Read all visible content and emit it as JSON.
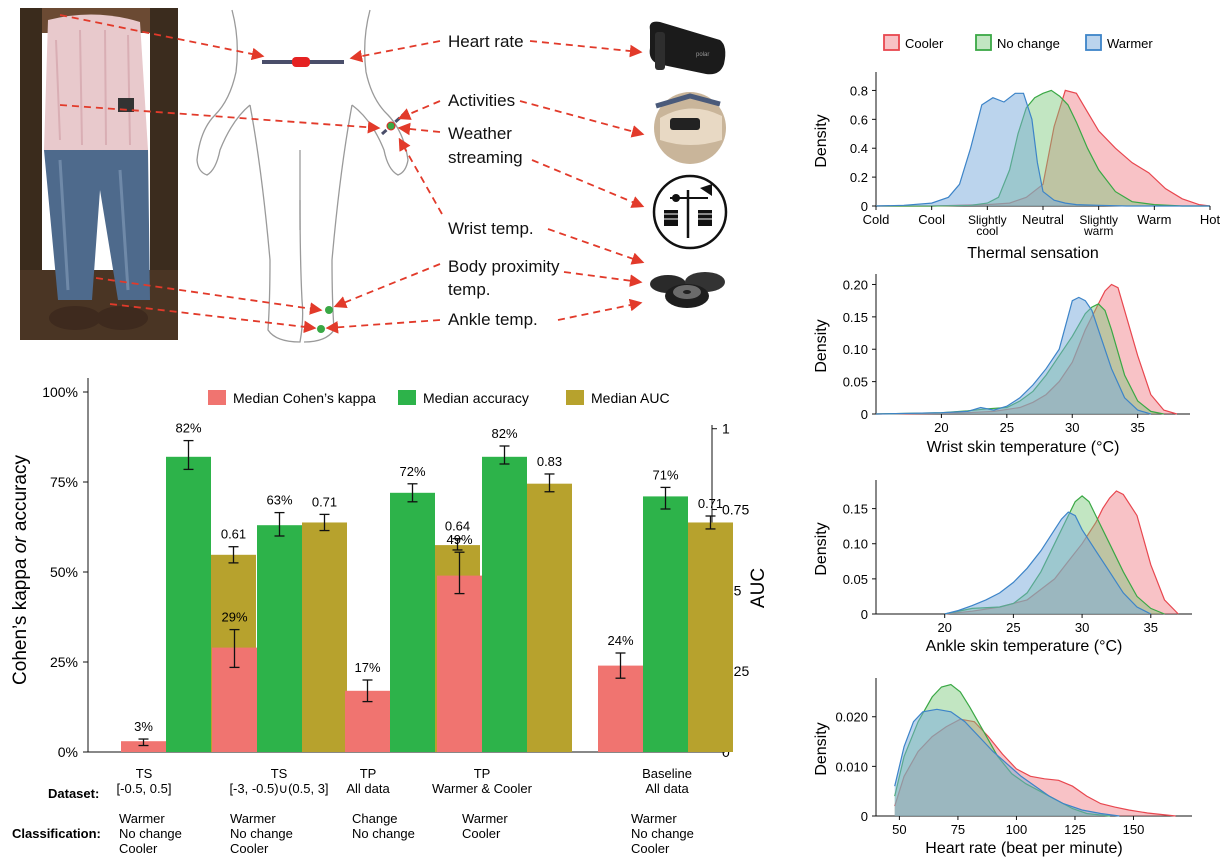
{
  "sensor_labels": {
    "heart_rate": "Heart rate",
    "activities": "Activities",
    "weather_line1": "Weather",
    "weather_line2": "streaming",
    "wrist": "Wrist temp.",
    "body_line1": "Body proximity",
    "body_line2": "temp.",
    "ankle": "Ankle temp."
  },
  "icon_names": [
    "person-photo",
    "body-outline-icon",
    "chest-strap-icon",
    "wrist-activity-photo",
    "weather-station-icon",
    "temperature-button-sensor-icon"
  ],
  "colors": {
    "cooler": "#e8474f",
    "nochange": "#3aa845",
    "warmer": "#3d84c8",
    "kappa": "#f07470",
    "accuracy": "#2db34a",
    "auc": "#b7a22d",
    "arrow": "#e23a2a"
  },
  "chart_data": [
    {
      "type": "bar",
      "legend": [
        "Median Cohen’s kappa",
        "Median accuracy",
        "Median AUC"
      ],
      "legend_position": "top",
      "ylabel_parts": [
        "Cohen’s kappa ",
        "or",
        " accuracy"
      ],
      "ylabel_right": "AUC",
      "y_ticks": [
        "0%",
        "25%",
        "50%",
        "75%",
        "100%"
      ],
      "y_right_ticks": [
        "0",
        "0.25",
        "0.5",
        "0.75",
        "1"
      ],
      "ylim": [
        0,
        100
      ],
      "y_right_lim": [
        0,
        1
      ],
      "row_labels": {
        "dataset": "Dataset:",
        "classification": "Classification:"
      },
      "groups": [
        {
          "dataset": [
            "TS",
            "[-0.5, 0.5]"
          ],
          "classification": [
            "Warmer",
            "No change",
            "Cooler"
          ],
          "kappa": 3,
          "kappa_label": "3%",
          "kappa_err": [
            1.8,
            3.6
          ],
          "accuracy": 82,
          "accuracy_label": "82%",
          "accuracy_err": [
            78.5,
            86.5
          ],
          "auc": 0.61,
          "auc_label": "0.61",
          "auc_err": [
            0.585,
            0.635
          ]
        },
        {
          "dataset": [
            "TS",
            "[-3, -0.5)∪(0.5, 3]"
          ],
          "classification": [
            "Warmer",
            "No change",
            "Cooler"
          ],
          "kappa": 29,
          "kappa_label": "29%",
          "kappa_err": [
            23.5,
            34
          ],
          "accuracy": 63,
          "accuracy_label": "63%",
          "accuracy_err": [
            60,
            66.5
          ],
          "auc": 0.71,
          "auc_label": "0.71",
          "auc_err": [
            0.685,
            0.735
          ]
        },
        {
          "dataset": [
            "TP",
            "All data"
          ],
          "classification": [
            "Change",
            "No change"
          ],
          "kappa": 17,
          "kappa_label": "17%",
          "kappa_err": [
            14,
            20
          ],
          "accuracy": 72,
          "accuracy_label": "72%",
          "accuracy_err": [
            69.5,
            74.5
          ],
          "auc": 0.64,
          "auc_label": "0.64",
          "auc_err": [
            0.625,
            0.66
          ]
        },
        {
          "dataset": [
            "TP",
            "Warmer & Cooler"
          ],
          "classification": [
            "Warmer",
            "Cooler"
          ],
          "kappa": 49,
          "kappa_label": "49%",
          "kappa_err": [
            44,
            55.5
          ],
          "accuracy": 82,
          "accuracy_label": "82%",
          "accuracy_err": [
            80,
            85
          ],
          "auc": 0.83,
          "auc_label": "0.83",
          "auc_err": [
            0.805,
            0.86
          ]
        },
        {
          "dataset": [
            "Baseline",
            "All data"
          ],
          "classification": [
            "Warmer",
            "No change",
            "Cooler"
          ],
          "kappa": 24,
          "kappa_label": "24%",
          "kappa_err": [
            20.5,
            27.5
          ],
          "accuracy": 71,
          "accuracy_label": "71%",
          "accuracy_err": [
            67.5,
            73.5
          ],
          "auc": 0.71,
          "auc_label": "0.71",
          "auc_err": [
            0.69,
            0.73
          ]
        }
      ]
    },
    {
      "type": "area",
      "legend": [
        "Cooler",
        "No change",
        "Warmer"
      ],
      "legend_position": "top",
      "xlabel": "Thermal sensation",
      "ylabel": "Density",
      "x_ticks": [
        "Cold",
        "Cool",
        "Slightly cool",
        "Neutral",
        "Slightly warm",
        "Warm",
        "Hot"
      ],
      "xlim": [
        -3,
        3
      ],
      "y_ticks": [
        "0",
        "0.2",
        "0.4",
        "0.6",
        "0.8"
      ],
      "ylim": [
        0,
        0.9
      ],
      "series": [
        {
          "name": "Cooler",
          "x": [
            -3,
            -2,
            -1,
            -0.6,
            -0.3,
            0,
            0.2,
            0.4,
            0.6,
            0.8,
            1,
            1.3,
            1.6,
            1.9,
            2.2,
            2.5,
            2.8,
            3
          ],
          "y": [
            0,
            0,
            0.01,
            0.02,
            0.06,
            0.15,
            0.55,
            0.8,
            0.78,
            0.65,
            0.52,
            0.4,
            0.3,
            0.23,
            0.12,
            0.05,
            0.01,
            0
          ]
        },
        {
          "name": "No change",
          "x": [
            -3,
            -2,
            -1.3,
            -1,
            -0.8,
            -0.6,
            -0.45,
            -0.3,
            -0.15,
            0,
            0.15,
            0.3,
            0.45,
            0.6,
            0.8,
            1,
            1.3,
            1.6,
            2,
            2.5,
            3
          ],
          "y": [
            0,
            0,
            0.005,
            0.02,
            0.06,
            0.25,
            0.5,
            0.68,
            0.75,
            0.78,
            0.8,
            0.76,
            0.7,
            0.58,
            0.4,
            0.25,
            0.1,
            0.03,
            0.01,
            0,
            0
          ]
        },
        {
          "name": "Warmer",
          "x": [
            -3,
            -2.5,
            -2,
            -1.7,
            -1.5,
            -1.3,
            -1.1,
            -0.9,
            -0.7,
            -0.5,
            -0.35,
            -0.2,
            -0.1,
            0,
            0.2,
            0.4,
            0.6,
            1,
            1.5,
            3
          ],
          "y": [
            0,
            0.005,
            0.02,
            0.06,
            0.15,
            0.4,
            0.7,
            0.75,
            0.72,
            0.78,
            0.78,
            0.6,
            0.3,
            0.1,
            0.04,
            0.02,
            0.01,
            0.005,
            0,
            0
          ]
        }
      ]
    },
    {
      "type": "area",
      "xlabel": "Wrist skin temperature (°C)",
      "ylabel": "Density",
      "x_ticks": [
        "20",
        "25",
        "30",
        "35"
      ],
      "xlim": [
        15,
        39
      ],
      "y_ticks": [
        "0",
        "0.05",
        "0.10",
        "0.15",
        "0.20"
      ],
      "ylim": [
        0,
        0.21
      ],
      "series": [
        {
          "name": "Cooler",
          "x": [
            15,
            20,
            22,
            24,
            26,
            27,
            28,
            29,
            30,
            31,
            32,
            32.5,
            33,
            33.5,
            34,
            35,
            36,
            37,
            38
          ],
          "y": [
            0,
            0.001,
            0.002,
            0.004,
            0.01,
            0.018,
            0.03,
            0.05,
            0.08,
            0.13,
            0.17,
            0.19,
            0.2,
            0.195,
            0.16,
            0.09,
            0.03,
            0.006,
            0
          ]
        },
        {
          "name": "No change",
          "x": [
            15,
            20,
            22,
            23.5,
            25,
            26,
            27,
            28,
            29,
            30,
            31,
            31.5,
            32,
            32.5,
            33,
            34,
            35,
            36,
            37
          ],
          "y": [
            0,
            0.002,
            0.005,
            0.008,
            0.01,
            0.02,
            0.035,
            0.06,
            0.09,
            0.12,
            0.155,
            0.165,
            0.17,
            0.16,
            0.13,
            0.06,
            0.02,
            0.004,
            0
          ]
        },
        {
          "name": "Warmer",
          "x": [
            15,
            20,
            22,
            23,
            24,
            25,
            26,
            27,
            28,
            29,
            30,
            30.5,
            31,
            31.5,
            32,
            33,
            34,
            35,
            36
          ],
          "y": [
            0,
            0.002,
            0.004,
            0.01,
            0.006,
            0.012,
            0.025,
            0.045,
            0.07,
            0.1,
            0.175,
            0.18,
            0.175,
            0.16,
            0.13,
            0.07,
            0.025,
            0.006,
            0
          ]
        }
      ]
    },
    {
      "type": "area",
      "xlabel": "Ankle skin temperature (°C)",
      "ylabel": "Density",
      "x_ticks": [
        "20",
        "25",
        "30",
        "35"
      ],
      "xlim": [
        15,
        38
      ],
      "y_ticks": [
        "0",
        "0.05",
        "0.10",
        "0.15"
      ],
      "ylim": [
        0,
        0.185
      ],
      "series": [
        {
          "name": "Cooler",
          "x": [
            20,
            22,
            24,
            26,
            27,
            28,
            29,
            30,
            31,
            31.5,
            32,
            32.5,
            33,
            34,
            35,
            36,
            37
          ],
          "y": [
            0,
            0.004,
            0.01,
            0.02,
            0.035,
            0.05,
            0.075,
            0.1,
            0.13,
            0.15,
            0.165,
            0.175,
            0.17,
            0.14,
            0.07,
            0.02,
            0
          ]
        },
        {
          "name": "No change",
          "x": [
            20,
            22,
            24,
            25,
            26,
            27,
            28,
            29,
            29.5,
            30,
            30.5,
            31,
            32,
            33,
            34,
            35,
            36
          ],
          "y": [
            0,
            0.008,
            0.01,
            0.015,
            0.03,
            0.06,
            0.1,
            0.14,
            0.16,
            0.168,
            0.16,
            0.14,
            0.1,
            0.06,
            0.025,
            0.008,
            0
          ]
        },
        {
          "name": "Warmer",
          "x": [
            20,
            21,
            22,
            23,
            24,
            25,
            26,
            27,
            28,
            28.5,
            29,
            29.5,
            30,
            31,
            32,
            33,
            34,
            35
          ],
          "y": [
            0,
            0.005,
            0.012,
            0.02,
            0.03,
            0.045,
            0.065,
            0.09,
            0.12,
            0.135,
            0.145,
            0.14,
            0.12,
            0.09,
            0.06,
            0.03,
            0.01,
            0
          ]
        }
      ]
    },
    {
      "type": "area",
      "xlabel": "Heart rate (beat per minute)",
      "ylabel": "Density",
      "x_ticks": [
        "50",
        "75",
        "100",
        "125",
        "150"
      ],
      "xlim": [
        40,
        175
      ],
      "y_ticks": [
        "0",
        "0.010",
        "0.020"
      ],
      "ylim": [
        0,
        0.027
      ],
      "series": [
        {
          "name": "Cooler",
          "x": [
            48,
            52,
            58,
            64,
            70,
            76,
            82,
            88,
            94,
            100,
            106,
            112,
            118,
            124,
            130,
            136,
            142,
            148,
            156,
            164,
            168
          ],
          "y": [
            0.002,
            0.008,
            0.013,
            0.016,
            0.018,
            0.0195,
            0.019,
            0.016,
            0.0125,
            0.0095,
            0.008,
            0.0075,
            0.0072,
            0.006,
            0.004,
            0.0025,
            0.0018,
            0.0012,
            0.0006,
            0.0002,
            0
          ]
        },
        {
          "name": "No change",
          "x": [
            48,
            52,
            58,
            64,
            68,
            72,
            76,
            80,
            86,
            92,
            98,
            104,
            110,
            118,
            124,
            130,
            140
          ],
          "y": [
            0.004,
            0.012,
            0.019,
            0.024,
            0.026,
            0.0265,
            0.025,
            0.022,
            0.017,
            0.012,
            0.0085,
            0.0065,
            0.005,
            0.003,
            0.0015,
            0.0005,
            0
          ]
        },
        {
          "name": "Warmer",
          "x": [
            48,
            52,
            56,
            60,
            66,
            72,
            78,
            84,
            90,
            96,
            102,
            108,
            114,
            120,
            128,
            136,
            144
          ],
          "y": [
            0.006,
            0.014,
            0.019,
            0.021,
            0.0215,
            0.021,
            0.019,
            0.016,
            0.013,
            0.0105,
            0.008,
            0.006,
            0.004,
            0.0025,
            0.0012,
            0.0005,
            0
          ]
        }
      ]
    }
  ]
}
